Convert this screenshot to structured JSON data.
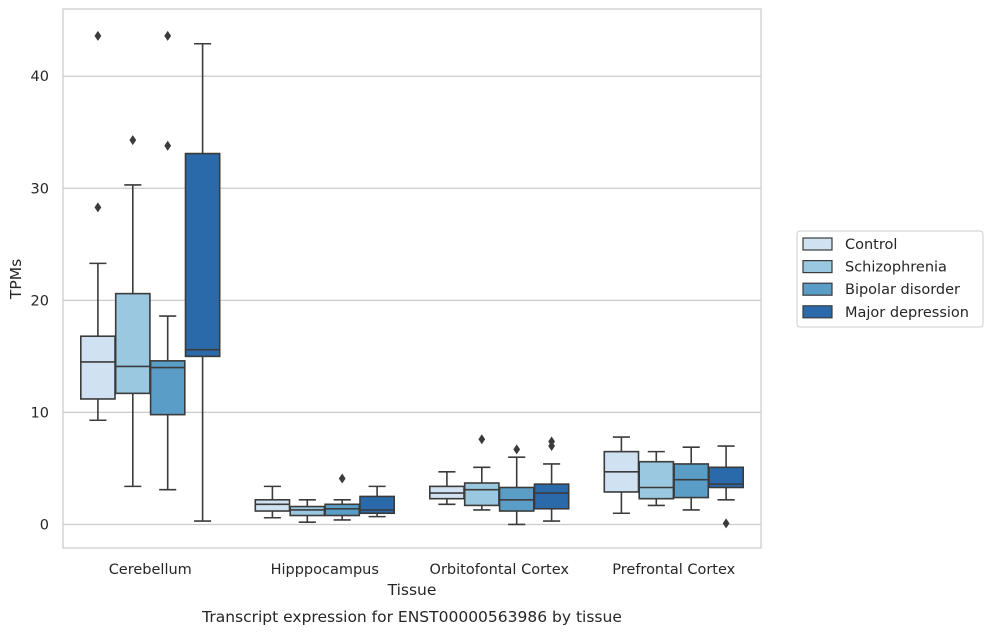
{
  "chart_data": {
    "type": "box",
    "title": "Transcript expression for ENST00000563986 by tissue",
    "xlabel": "Tissue",
    "ylabel": "TPMs",
    "ylim": [
      -2.1,
      46.0
    ],
    "yticks": [
      0,
      10,
      20,
      30,
      40
    ],
    "grid": "horizontal",
    "legend_position": "right",
    "categories": [
      "Cerebellum",
      "Hipppocampus",
      "Orbitofontal Cortex",
      "Prefrontal Cortex"
    ],
    "series": [
      {
        "name": "Control",
        "color": "#d0e1f2",
        "boxes": [
          {
            "whislo": 9.3,
            "q1": 11.2,
            "med": 14.5,
            "q3": 16.8,
            "whishi": 23.3,
            "fliers": [
              28.3,
              43.6
            ]
          },
          {
            "whislo": 0.6,
            "q1": 1.2,
            "med": 1.8,
            "q3": 2.2,
            "whishi": 3.4,
            "fliers": []
          },
          {
            "whislo": 1.8,
            "q1": 2.3,
            "med": 2.8,
            "q3": 3.4,
            "whishi": 4.7,
            "fliers": []
          },
          {
            "whislo": 1.0,
            "q1": 2.9,
            "med": 4.7,
            "q3": 6.5,
            "whishi": 7.8,
            "fliers": []
          }
        ]
      },
      {
        "name": "Schizophrenia",
        "color": "#9ac8e0",
        "boxes": [
          {
            "whislo": 3.4,
            "q1": 11.7,
            "med": 14.1,
            "q3": 20.6,
            "whishi": 30.3,
            "fliers": [
              34.3
            ]
          },
          {
            "whislo": 0.2,
            "q1": 0.8,
            "med": 1.3,
            "q3": 1.6,
            "whishi": 2.2,
            "fliers": []
          },
          {
            "whislo": 1.3,
            "q1": 1.7,
            "med": 3.1,
            "q3": 3.7,
            "whishi": 5.1,
            "fliers": [
              7.6
            ]
          },
          {
            "whislo": 1.7,
            "q1": 2.3,
            "med": 3.3,
            "q3": 5.6,
            "whishi": 6.5,
            "fliers": []
          }
        ]
      },
      {
        "name": "Bipolar disorder",
        "color": "#5a9ec8",
        "boxes": [
          {
            "whislo": 3.1,
            "q1": 9.8,
            "med": 14.0,
            "q3": 14.6,
            "whishi": 18.6,
            "fliers": [
              33.8,
              43.6
            ]
          },
          {
            "whislo": 0.4,
            "q1": 0.8,
            "med": 1.4,
            "q3": 1.8,
            "whishi": 2.2,
            "fliers": [
              4.1
            ]
          },
          {
            "whislo": 0.0,
            "q1": 1.2,
            "med": 2.2,
            "q3": 3.3,
            "whishi": 6.0,
            "fliers": [
              6.7
            ]
          },
          {
            "whislo": 1.3,
            "q1": 2.4,
            "med": 4.0,
            "q3": 5.4,
            "whishi": 6.9,
            "fliers": []
          }
        ]
      },
      {
        "name": "Major depression",
        "color": "#2a6aaa",
        "boxes": [
          {
            "whislo": 0.3,
            "q1": 15.0,
            "med": 15.6,
            "q3": 33.1,
            "whishi": 42.9,
            "fliers": []
          },
          {
            "whislo": 0.7,
            "q1": 1.0,
            "med": 1.3,
            "q3": 2.5,
            "whishi": 3.4,
            "fliers": []
          },
          {
            "whislo": 0.3,
            "q1": 1.4,
            "med": 2.8,
            "q3": 3.6,
            "whishi": 5.4,
            "fliers": [
              7.0,
              7.4
            ]
          },
          {
            "whislo": 2.2,
            "q1": 3.3,
            "med": 3.6,
            "q3": 5.1,
            "whishi": 7.0,
            "fliers": [
              0.1
            ]
          }
        ]
      }
    ]
  }
}
